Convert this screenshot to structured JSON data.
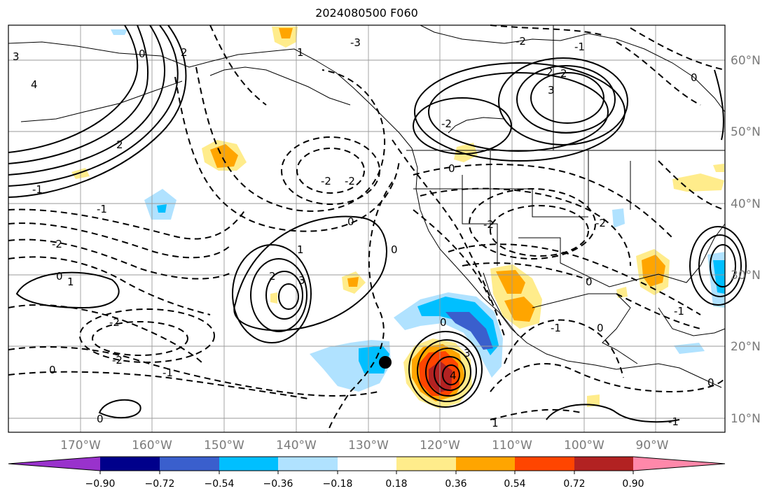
{
  "title": "2024080500 F060",
  "lat_labels": [
    "60°N",
    "50°N",
    "40°N",
    "30°N",
    "20°N",
    "10°N"
  ],
  "lon_labels": [
    "170°W",
    "160°W",
    "150°W",
    "140°W",
    "130°W",
    "120°W",
    "110°W",
    "100°W",
    "90°W"
  ],
  "colorbar": {
    "colors": [
      "#9932cc",
      "#00008b",
      "#3a5fcd",
      "#00bfff",
      "#b0e2ff",
      "#ffffff",
      "#ffec8b",
      "#ffa500",
      "#ff4500",
      "#b22222",
      "#ff88aa"
    ],
    "ticks": [
      "−0.90",
      "−0.72",
      "−0.54",
      "−0.36",
      "−0.18",
      "0.18",
      "0.36",
      "0.54",
      "0.72",
      "0.90"
    ]
  },
  "contour_labels": [
    "3",
    "4",
    "0",
    "2",
    "-3",
    "-2",
    "-1",
    "1",
    "2",
    "0",
    "-2",
    "2",
    "3",
    "2",
    "0",
    "-2",
    "-2",
    "-1",
    "0",
    "-1",
    "-2",
    "0",
    "1",
    "2",
    "3",
    "-2",
    "-2",
    "-1",
    "0",
    "0",
    "1",
    "4",
    "3",
    "0",
    "-1",
    "0",
    "-1",
    "0",
    "1",
    "-1",
    "0",
    "-2",
    "-2",
    "0"
  ],
  "marker": "black-circle"
}
